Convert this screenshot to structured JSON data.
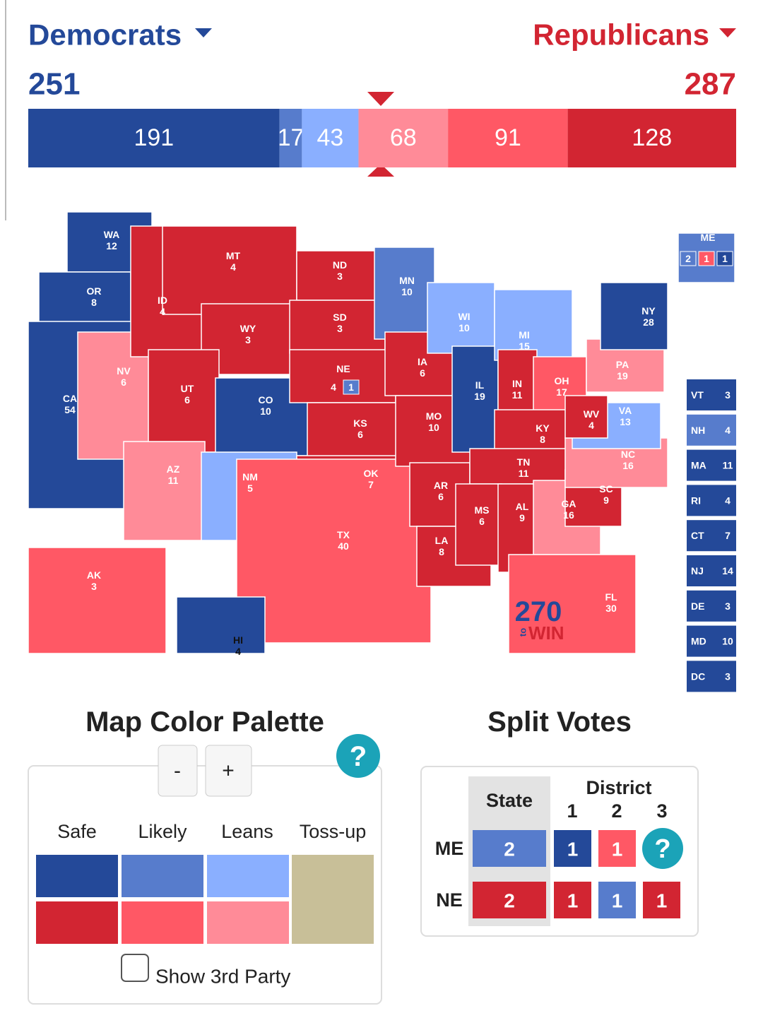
{
  "header": {
    "dem_label": "Democrats",
    "rep_label": "Republicans",
    "dem_total": 251,
    "rep_total": 287
  },
  "bar": {
    "segments": [
      {
        "value": 191,
        "color": "#244999"
      },
      {
        "value": 17,
        "color": "#577ccc"
      },
      {
        "value": 43,
        "color": "#8aafff"
      },
      {
        "value": 68,
        "color": "#ff8b98"
      },
      {
        "value": 91,
        "color": "#ff5865"
      },
      {
        "value": 128,
        "color": "#d22532"
      }
    ]
  },
  "map": {
    "states": [
      {
        "label": "WA",
        "votes": 12,
        "color": "#244999"
      },
      {
        "label": "OR",
        "votes": 8,
        "color": "#244999"
      },
      {
        "label": "CA",
        "votes": 54,
        "color": "#244999"
      },
      {
        "label": "NV",
        "votes": 6,
        "color": "#ff8b98"
      },
      {
        "label": "ID",
        "votes": 4,
        "color": "#d22532"
      },
      {
        "label": "MT",
        "votes": 4,
        "color": "#d22532"
      },
      {
        "label": "WY",
        "votes": 3,
        "color": "#d22532"
      },
      {
        "label": "UT",
        "votes": 6,
        "color": "#d22532"
      },
      {
        "label": "CO",
        "votes": 10,
        "color": "#244999"
      },
      {
        "label": "AZ",
        "votes": 11,
        "color": "#ff8b98"
      },
      {
        "label": "NM",
        "votes": 5,
        "color": "#8aafff"
      },
      {
        "label": "ND",
        "votes": 3,
        "color": "#d22532"
      },
      {
        "label": "SD",
        "votes": 3,
        "color": "#d22532"
      },
      {
        "label": "NE",
        "votes": 4,
        "color": "#d22532",
        "boxes": [
          {
            "value": 1,
            "color": "#577ccc"
          }
        ]
      },
      {
        "label": "KS",
        "votes": 6,
        "color": "#d22532"
      },
      {
        "label": "OK",
        "votes": 7,
        "color": "#d22532"
      },
      {
        "label": "TX",
        "votes": 40,
        "color": "#ff5865"
      },
      {
        "label": "MN",
        "votes": 10,
        "color": "#577ccc"
      },
      {
        "label": "IA",
        "votes": 6,
        "color": "#d22532"
      },
      {
        "label": "MO",
        "votes": 10,
        "color": "#d22532"
      },
      {
        "label": "AR",
        "votes": 6,
        "color": "#d22532"
      },
      {
        "label": "LA",
        "votes": 8,
        "color": "#d22532"
      },
      {
        "label": "WI",
        "votes": 10,
        "color": "#8aafff"
      },
      {
        "label": "IL",
        "votes": 19,
        "color": "#244999"
      },
      {
        "label": "MI",
        "votes": 15,
        "color": "#8aafff"
      },
      {
        "label": "IN",
        "votes": 11,
        "color": "#d22532"
      },
      {
        "label": "OH",
        "votes": 17,
        "color": "#ff5865"
      },
      {
        "label": "KY",
        "votes": 8,
        "color": "#d22532"
      },
      {
        "label": "TN",
        "votes": 11,
        "color": "#d22532"
      },
      {
        "label": "MS",
        "votes": 6,
        "color": "#d22532"
      },
      {
        "label": "AL",
        "votes": 9,
        "color": "#d22532"
      },
      {
        "label": "GA",
        "votes": 16,
        "color": "#ff8b98"
      },
      {
        "label": "FL",
        "votes": 30,
        "color": "#ff5865"
      },
      {
        "label": "SC",
        "votes": 9,
        "color": "#d22532"
      },
      {
        "label": "NC",
        "votes": 16,
        "color": "#ff8b98"
      },
      {
        "label": "VA",
        "votes": 13,
        "color": "#8aafff"
      },
      {
        "label": "WV",
        "votes": 4,
        "color": "#d22532"
      },
      {
        "label": "PA",
        "votes": 19,
        "color": "#ff8b98"
      },
      {
        "label": "NY",
        "votes": 28,
        "color": "#244999"
      },
      {
        "label": "ME",
        "color": "#577ccc",
        "boxes": [
          {
            "value": 2,
            "color": "#577ccc"
          },
          {
            "value": 1,
            "color": "#ff5865"
          },
          {
            "value": 1,
            "color": "#244999"
          }
        ]
      },
      {
        "label": "AK",
        "votes": 3,
        "color": "#ff5865"
      },
      {
        "label": "HI",
        "votes": 4,
        "color": "#244999"
      }
    ],
    "logo": {
      "number": "270",
      "small": "to",
      "word": "WIN"
    }
  },
  "sidebar": [
    {
      "label": "VT",
      "votes": 3,
      "color": "#244999"
    },
    {
      "label": "NH",
      "votes": 4,
      "color": "#577ccc"
    },
    {
      "label": "MA",
      "votes": 11,
      "color": "#244999"
    },
    {
      "label": "RI",
      "votes": 4,
      "color": "#244999"
    },
    {
      "label": "CT",
      "votes": 7,
      "color": "#244999"
    },
    {
      "label": "NJ",
      "votes": 14,
      "color": "#244999"
    },
    {
      "label": "DE",
      "votes": 3,
      "color": "#244999"
    },
    {
      "label": "MD",
      "votes": 10,
      "color": "#244999"
    },
    {
      "label": "DC",
      "votes": 3,
      "color": "#244999"
    }
  ],
  "palette": {
    "title": "Map Color Palette",
    "minus": "-",
    "plus": "+",
    "help": "?",
    "columns": [
      "Safe",
      "Likely",
      "Leans",
      "Toss-up"
    ],
    "dem_colors": [
      "#244999",
      "#577ccc",
      "#8aafff"
    ],
    "rep_colors": [
      "#d22532",
      "#ff5865",
      "#ff8b98"
    ],
    "tossup_color": "#c8bf98",
    "third_party_label": "Show 3rd Party"
  },
  "split_votes": {
    "title": "Split Votes",
    "state_header": "State",
    "district_header": "District",
    "districts": [
      1,
      2,
      3
    ],
    "rows": [
      {
        "state": "ME",
        "cells": [
          {
            "value": 2,
            "color": "#577ccc"
          },
          {
            "value": 1,
            "color": "#244999"
          },
          {
            "value": 1,
            "color": "#ff5865"
          },
          {
            "value": "?",
            "color": "#1ba3b8"
          }
        ]
      },
      {
        "state": "NE",
        "cells": [
          {
            "value": 2,
            "color": "#d22532"
          },
          {
            "value": 1,
            "color": "#d22532"
          },
          {
            "value": 1,
            "color": "#577ccc"
          },
          {
            "value": 1,
            "color": "#d22532"
          }
        ]
      }
    ]
  }
}
